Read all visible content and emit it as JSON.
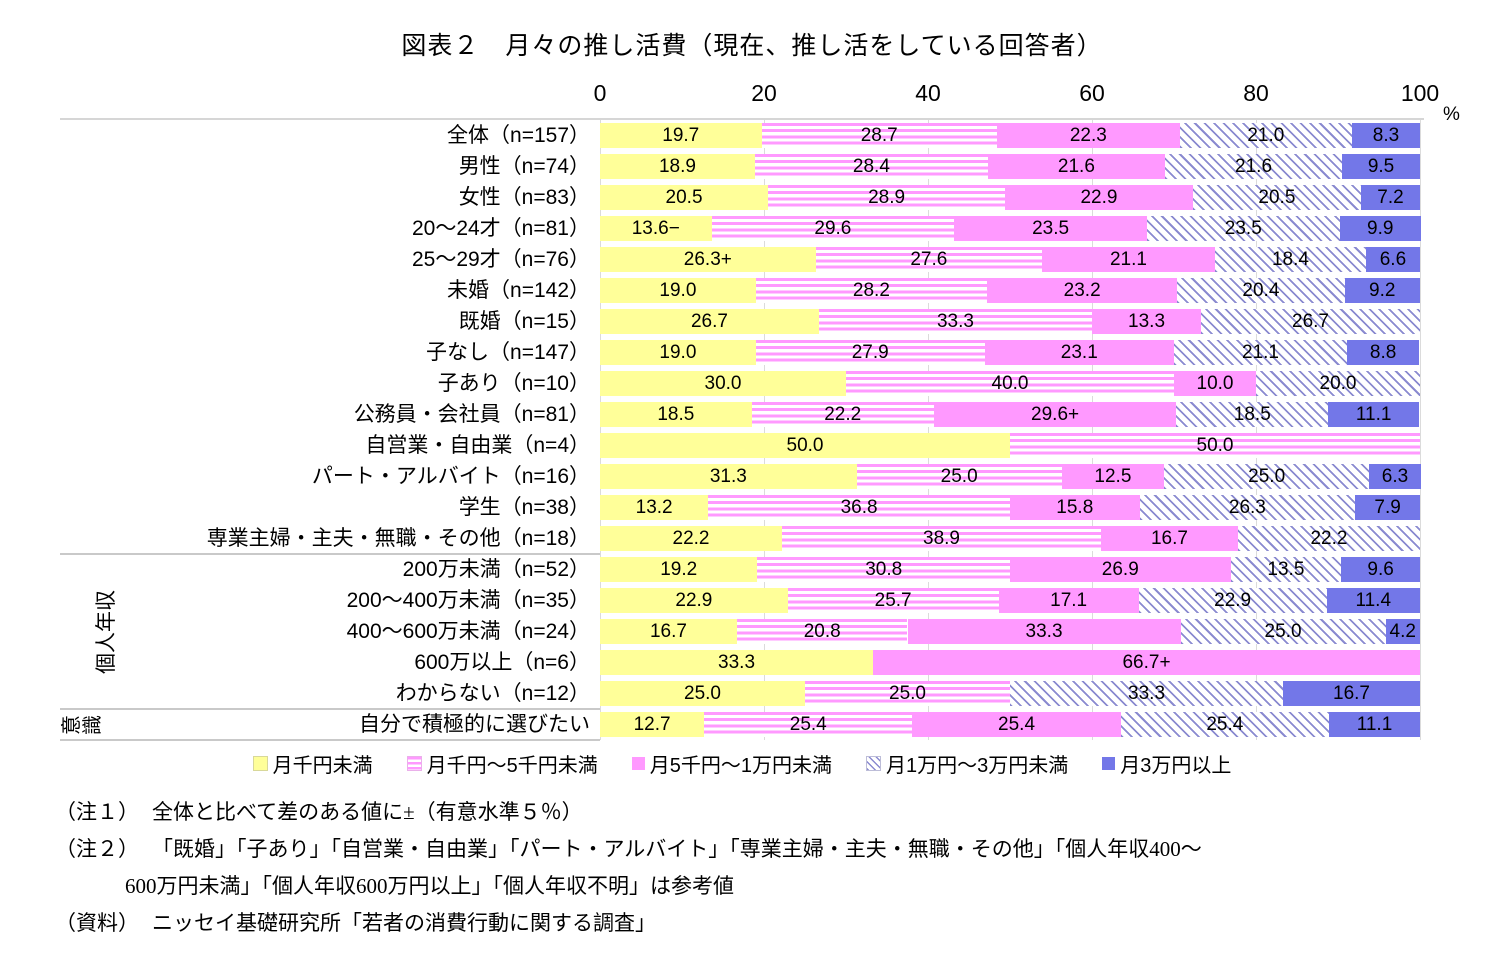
{
  "title": "図表２　月々の推し活費（現在、推し活をしている回答者）",
  "chart_data": {
    "type": "bar",
    "variant": "horizontal-stacked-100pct",
    "unit": "%",
    "xlim": [
      0,
      100
    ],
    "x_ticks": [
      "0",
      "20",
      "40",
      "60",
      "80",
      "100"
    ],
    "grid": "vertical-light-gray",
    "legend_position": "bottom",
    "legend": [
      "月千円未満",
      "月千円～5千円未満",
      "月5千円～1万円未満",
      "月1万円～3万円未満",
      "月3万円以上"
    ],
    "series_styles": [
      {
        "name": "月千円未満",
        "fill": "#FFFF99",
        "pattern": "solid"
      },
      {
        "name": "月千円～5千円未満",
        "fill": "#FF99FF",
        "pattern": "horizontal-stripes-on-white"
      },
      {
        "name": "月5千円～1万円未満",
        "fill": "#FF99FF",
        "pattern": "solid"
      },
      {
        "name": "月1万円～3万円未満",
        "fill": "#8A8AD0",
        "pattern": "diagonal-hatch-on-white"
      },
      {
        "name": "月3万円以上",
        "fill": "#7377E8",
        "pattern": "solid"
      }
    ],
    "categories": [
      "全体（n=157）",
      "男性（n=74）",
      "女性（n=83）",
      "20～24才（n=81）",
      "25～29才（n=76）",
      "未婚（n=142）",
      "既婚（n=15）",
      "子なし（n=147）",
      "子あり（n=10）",
      "公務員・会社員（n=81）",
      "自営業・自由業（n=4）",
      "パート・アルバイト（n=16）",
      "学生（n=38）",
      "専業主婦・主夫・無職・その他（n=18）",
      "200万未満（n=52）",
      "200～400万未満（n=35）",
      "400～600万未満（n=24）",
      "600万以上（n=6）",
      "わからない（n=12）",
      "自分で積極的に選びたい"
    ],
    "values": [
      [
        "19.7",
        "28.7",
        "22.3",
        "21.0",
        "8.3"
      ],
      [
        "18.9",
        "28.4",
        "21.6",
        "21.6",
        "9.5"
      ],
      [
        "20.5",
        "28.9",
        "22.9",
        "20.5",
        "7.2"
      ],
      [
        "13.6−",
        "29.6",
        "23.5",
        "23.5",
        "9.9"
      ],
      [
        "26.3+",
        "27.6",
        "21.1",
        "18.4",
        "6.6"
      ],
      [
        "19.0",
        "28.2",
        "23.2",
        "20.4",
        "9.2"
      ],
      [
        "26.7",
        "33.3",
        "13.3",
        "26.7",
        ""
      ],
      [
        "19.0",
        "27.9",
        "23.1",
        "21.1",
        "8.8"
      ],
      [
        "30.0",
        "40.0",
        "10.0",
        "20.0",
        ""
      ],
      [
        "18.5",
        "22.2",
        "29.6+",
        "18.5",
        "11.1"
      ],
      [
        "50.0",
        "50.0",
        "",
        "",
        ""
      ],
      [
        "31.3",
        "25.0",
        "12.5",
        "25.0",
        "6.3"
      ],
      [
        "13.2",
        "36.8",
        "15.8",
        "26.3",
        "7.9"
      ],
      [
        "22.2",
        "38.9",
        "16.7",
        "22.2",
        ""
      ],
      [
        "19.2",
        "30.8",
        "26.9",
        "13.5",
        "9.6"
      ],
      [
        "22.9",
        "25.7",
        "17.1",
        "22.9",
        "11.4"
      ],
      [
        "16.7",
        "20.8",
        "33.3",
        "25.0",
        "4.2"
      ],
      [
        "33.3",
        "",
        "66.7+",
        "",
        ""
      ],
      [
        "25.0",
        "25.0",
        "",
        "33.3",
        "16.7"
      ],
      [
        "12.7",
        "25.4",
        "25.4",
        "25.4",
        "11.1"
      ]
    ],
    "group_labels": [
      {
        "text": "個人年収",
        "from": 14,
        "to": 18,
        "style": "rotated"
      },
      {
        "text": "意識",
        "from": 19,
        "to": 19,
        "style": "rotated-chars"
      }
    ],
    "group_divider_rows": [
      14,
      19,
      20
    ],
    "significance_marks": "+/− appended to values differing from 全体 at 5% level"
  },
  "notes": [
    {
      "label": "（注１）",
      "text": "全体と比べて差のある値に±（有意水準５％）",
      "indent": 0
    },
    {
      "label": "（注２）",
      "text": "「既婚」「子あり」「自営業・自由業」「パート・アルバイト」「専業主婦・主夫・無職・その他」「個人年収400～",
      "indent": 0
    },
    {
      "label": "",
      "text": "600万円未満」「個人年収600万円以上」「個人年収不明」は参考値",
      "indent": 1
    },
    {
      "label": "（資料）",
      "text": "ニッセイ基礎研究所「若者の消費行動に関する調査」",
      "indent": 0
    }
  ],
  "colors": {
    "yellow": "#FFFF99",
    "pink": "#FF99FF",
    "hatch_blue": "#8A8AD0",
    "blue": "#7377E8",
    "gridline": "#DBDBDB",
    "divider": "#C9C9C9"
  }
}
